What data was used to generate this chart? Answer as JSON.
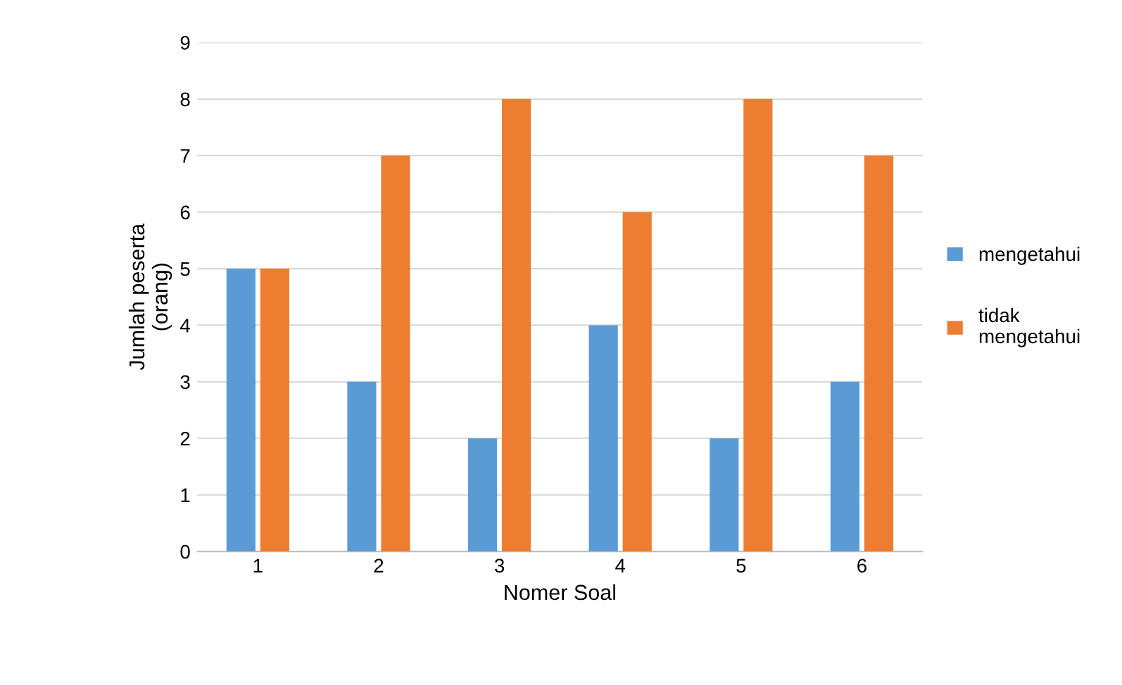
{
  "chart_data": {
    "type": "bar",
    "xlabel": "Nomer Soal",
    "ylabel": "Jumlah peserta\n(orang)",
    "categories": [
      "1",
      "2",
      "3",
      "4",
      "5",
      "6"
    ],
    "series": [
      {
        "name": "mengetahui",
        "color": "#5b9bd5",
        "values": [
          5,
          3,
          2,
          4,
          2,
          3
        ]
      },
      {
        "name": "tidak\nmengetahui",
        "color": "#ed7d31",
        "values": [
          5,
          7,
          8,
          6,
          8,
          7
        ]
      }
    ],
    "ylim": [
      0,
      9
    ],
    "yticks": [
      0,
      1,
      2,
      3,
      4,
      5,
      6,
      7,
      8,
      9
    ],
    "grid": "y",
    "legend": "right"
  }
}
